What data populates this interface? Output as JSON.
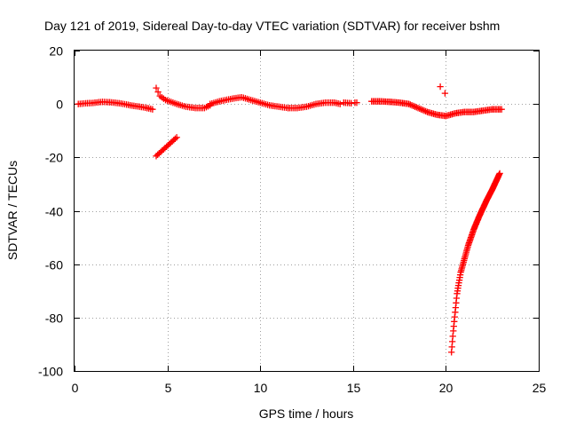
{
  "chart_data": {
    "type": "scatter",
    "title": "Day 121 of 2019, Sidereal Day-to-day VTEC variation (SDTVAR) for receiver bshm",
    "xlabel": "GPS time / hours",
    "ylabel": "SDTVAR / TECUs",
    "xlim": [
      0,
      25
    ],
    "ylim": [
      -100,
      20
    ],
    "xticks": [
      0,
      5,
      10,
      15,
      20,
      25
    ],
    "yticks": [
      -100,
      -80,
      -60,
      -40,
      -20,
      0,
      20
    ],
    "xtick_labels": [
      "0",
      "5",
      "10",
      "15",
      "20",
      "25"
    ],
    "ytick_labels": [
      "-100",
      "-80",
      "-60",
      "-40",
      "-20",
      "0",
      "20"
    ],
    "grid": true,
    "marker": "plus",
    "color": "#ff0000",
    "series": [
      {
        "name": "bshm",
        "segments": [
          {
            "x": [
              0.2,
              0.5,
              1.0,
              1.5,
              2.0,
              2.5,
              3.0,
              3.5,
              3.9
            ],
            "y": [
              0,
              0.2,
              0.4,
              0.8,
              0.6,
              0.2,
              -0.5,
              -1.0,
              -1.5
            ],
            "step": 0.1
          },
          {
            "x": [
              3.9,
              4.2
            ],
            "y": [
              -1.5,
              -2.0
            ],
            "step": 0.1
          },
          {
            "x": [
              4.4,
              4.6,
              4.9,
              5.5,
              6.0,
              6.5,
              7.0,
              7.3
            ],
            "y": [
              6.0,
              3.0,
              1.5,
              0.0,
              -1.0,
              -1.5,
              -1.5,
              -0.5
            ],
            "step": 0.1
          },
          {
            "x": [
              4.4,
              5.5
            ],
            "y": [
              -19.5,
              -12.5
            ],
            "step": 0.08
          },
          {
            "x": [
              7.3,
              7.8,
              8.5,
              9.0,
              9.5,
              10.0,
              10.5,
              11.0,
              11.5
            ],
            "y": [
              0.0,
              1.0,
              2.0,
              2.5,
              1.5,
              0.5,
              -0.5,
              -1.0,
              -1.5
            ],
            "step": 0.1
          },
          {
            "x": [
              11.5,
              12.0,
              12.5,
              13.0,
              13.5,
              14.0,
              14.3
            ],
            "y": [
              -1.5,
              -1.5,
              -1.0,
              0.0,
              0.5,
              0.5,
              0.0
            ],
            "step": 0.1
          },
          {
            "x": [
              14.5,
              14.9
            ],
            "y": [
              0.5,
              0.3
            ],
            "step": 0.1
          },
          {
            "x": [
              15.1,
              15.2
            ],
            "y": [
              0.5,
              0.5
            ],
            "step": 0.1
          },
          {
            "x": [
              16.0,
              16.5,
              17.0,
              17.5,
              18.0,
              18.5,
              19.0,
              19.5,
              20.0,
              20.5,
              21.0,
              21.5,
              22.0,
              22.5,
              23.0
            ],
            "y": [
              1.0,
              1.0,
              0.8,
              0.5,
              0.0,
              -1.5,
              -3.0,
              -4.0,
              -4.5,
              -3.5,
              -3.0,
              -3.0,
              -2.5,
              -2.0,
              -2.0
            ],
            "step": 0.08
          },
          {
            "x": [
              19.7,
              19.95
            ],
            "y": [
              6.5,
              4.0
            ],
            "step": 0.5
          },
          {
            "x": [
              20.3,
              20.4,
              20.5,
              20.6,
              20.8,
              21.0,
              21.2,
              21.5,
              21.8,
              22.0,
              22.2,
              22.5,
              22.7,
              22.9
            ],
            "y": [
              -93.0,
              -85.0,
              -78.0,
              -71.0,
              -63.0,
              -58.0,
              -53.0,
              -47.0,
              -42.0,
              -39.0,
              -36.0,
              -32.0,
              -29.0,
              -26.0
            ],
            "step": 0.025
          }
        ]
      }
    ]
  }
}
